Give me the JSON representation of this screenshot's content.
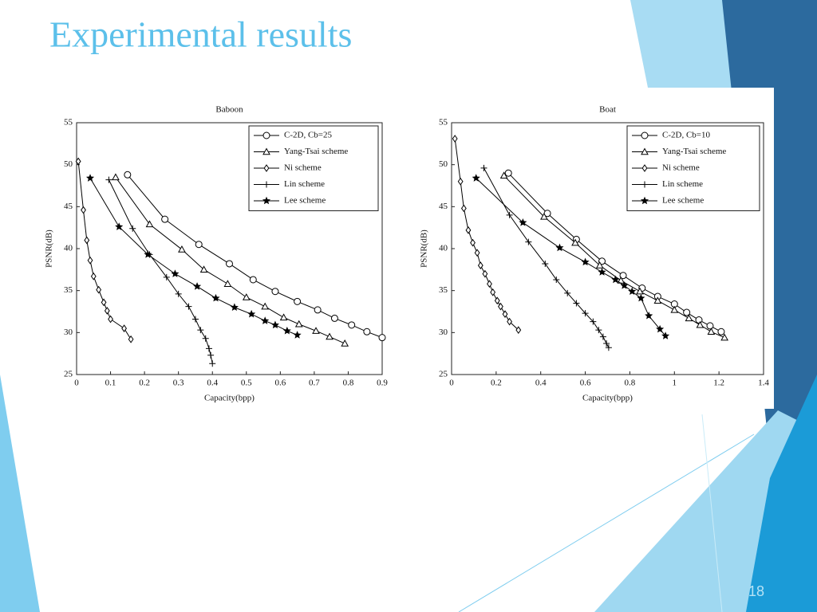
{
  "title": "Experimental results",
  "page_number": 18,
  "chart_data": [
    {
      "type": "line",
      "title": "Baboon",
      "x_label": "Capacity(bpp)",
      "y_label": "PSNR(dB)",
      "xlim": [
        0,
        0.9
      ],
      "ylim": [
        25,
        55
      ],
      "xticks": [
        0,
        0.1,
        0.2,
        0.3,
        0.4,
        0.5,
        0.6,
        0.7,
        0.8,
        0.9
      ],
      "yticks": [
        25,
        30,
        35,
        40,
        45,
        50,
        55
      ],
      "legend": "upper right",
      "series": [
        {
          "name": "C-2D, Cb=25",
          "color": "#000000",
          "marker": "circle",
          "x": [
            0.15,
            0.26,
            0.36,
            0.45,
            0.52,
            0.585,
            0.65,
            0.71,
            0.76,
            0.81,
            0.855,
            0.9
          ],
          "values": [
            48.8,
            43.5,
            40.5,
            38.2,
            36.3,
            34.9,
            33.7,
            32.7,
            31.7,
            30.9,
            30.1,
            29.4
          ]
        },
        {
          "name": "Yang-Tsai scheme",
          "color": "#000000",
          "marker": "triangle",
          "x": [
            0.115,
            0.215,
            0.31,
            0.375,
            0.445,
            0.5,
            0.555,
            0.61,
            0.655,
            0.705,
            0.745,
            0.79
          ],
          "values": [
            48.5,
            42.9,
            39.9,
            37.5,
            35.8,
            34.2,
            33.1,
            31.8,
            31.0,
            30.2,
            29.5,
            28.7
          ]
        },
        {
          "name": "Ni scheme",
          "color": "#000000",
          "marker": "diamond",
          "x": [
            0.005,
            0.02,
            0.03,
            0.04,
            0.05,
            0.065,
            0.08,
            0.09,
            0.1,
            0.14,
            0.16
          ],
          "values": [
            50.4,
            44.6,
            41.0,
            38.6,
            36.7,
            35.1,
            33.6,
            32.6,
            31.6,
            30.5,
            29.2
          ]
        },
        {
          "name": "Lin scheme",
          "color": "#000000",
          "marker": "plus",
          "x": [
            0.095,
            0.165,
            0.215,
            0.265,
            0.3,
            0.33,
            0.35,
            0.365,
            0.38,
            0.39,
            0.395,
            0.4
          ],
          "values": [
            48.2,
            42.4,
            39.3,
            36.6,
            34.6,
            33.1,
            31.6,
            30.3,
            29.3,
            28.1,
            27.3,
            26.3
          ]
        },
        {
          "name": "Lee scheme",
          "color": "#000000",
          "marker": "star",
          "x": [
            0.04,
            0.125,
            0.21,
            0.29,
            0.355,
            0.41,
            0.465,
            0.515,
            0.555,
            0.585,
            0.62,
            0.65
          ],
          "values": [
            48.4,
            42.6,
            39.3,
            37.0,
            35.5,
            34.1,
            33.0,
            32.2,
            31.4,
            30.9,
            30.2,
            29.7
          ]
        }
      ]
    },
    {
      "type": "line",
      "title": "Boat",
      "x_label": "Capacity(bpp)",
      "y_label": "PSNR(dB)",
      "xlim": [
        0,
        1.4
      ],
      "ylim": [
        25,
        55
      ],
      "xticks": [
        0,
        0.2,
        0.4,
        0.6,
        0.8,
        1,
        1.2,
        1.4
      ],
      "yticks": [
        25,
        30,
        35,
        40,
        45,
        50,
        55
      ],
      "legend": "upper right",
      "series": [
        {
          "name": "C-2D, Cb=10",
          "color": "#000000",
          "marker": "circle",
          "x": [
            0.255,
            0.43,
            0.56,
            0.675,
            0.77,
            0.855,
            0.925,
            1.0,
            1.055,
            1.11,
            1.16,
            1.21
          ],
          "values": [
            49.0,
            44.2,
            41.1,
            38.5,
            36.8,
            35.3,
            34.3,
            33.4,
            32.4,
            31.5,
            30.8,
            30.1
          ]
        },
        {
          "name": "Yang-Tsai scheme",
          "color": "#000000",
          "marker": "triangle",
          "x": [
            0.235,
            0.415,
            0.555,
            0.665,
            0.76,
            0.845,
            0.925,
            1.0,
            1.065,
            1.115,
            1.165,
            1.225
          ],
          "values": [
            48.7,
            43.8,
            40.7,
            38.0,
            36.2,
            34.9,
            33.8,
            32.7,
            31.7,
            30.9,
            30.1,
            29.4
          ]
        },
        {
          "name": "Ni scheme",
          "color": "#000000",
          "marker": "diamond",
          "x": [
            0.015,
            0.04,
            0.055,
            0.075,
            0.095,
            0.115,
            0.13,
            0.15,
            0.17,
            0.185,
            0.205,
            0.22,
            0.24,
            0.26,
            0.3
          ],
          "values": [
            53.1,
            48.0,
            44.8,
            42.2,
            40.7,
            39.5,
            38.0,
            37.0,
            35.8,
            34.8,
            33.8,
            33.1,
            32.2,
            31.3,
            30.3
          ]
        },
        {
          "name": "Lin scheme",
          "color": "#000000",
          "marker": "plus",
          "x": [
            0.145,
            0.26,
            0.345,
            0.42,
            0.47,
            0.52,
            0.56,
            0.6,
            0.635,
            0.66,
            0.68,
            0.695,
            0.705
          ],
          "values": [
            49.6,
            44.0,
            40.8,
            38.2,
            36.3,
            34.7,
            33.5,
            32.3,
            31.3,
            30.3,
            29.5,
            28.7,
            28.2
          ]
        },
        {
          "name": "Lee scheme",
          "color": "#000000",
          "marker": "star",
          "x": [
            0.11,
            0.32,
            0.485,
            0.6,
            0.675,
            0.735,
            0.775,
            0.81,
            0.85,
            0.885,
            0.935,
            0.96
          ],
          "values": [
            48.4,
            43.1,
            40.1,
            38.4,
            37.2,
            36.3,
            35.6,
            34.9,
            34.1,
            32.0,
            30.4,
            29.6
          ]
        }
      ]
    }
  ]
}
